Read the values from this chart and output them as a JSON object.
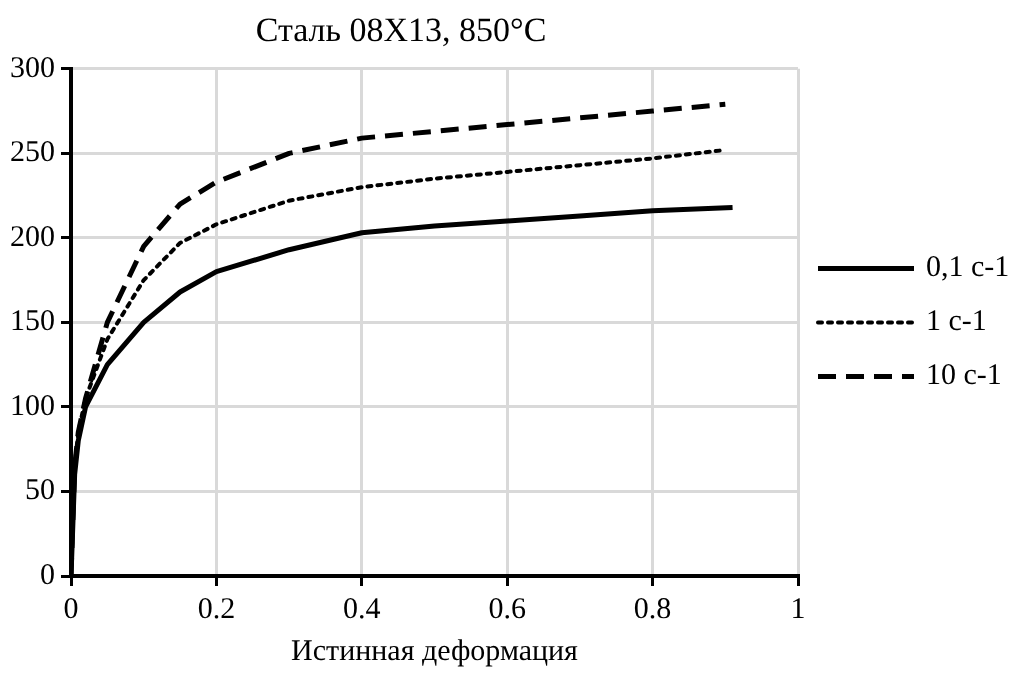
{
  "chart_data": {
    "type": "line",
    "title": "Сталь 08Х13, 850°С",
    "xlabel": "Истинная деформация",
    "xlim": [
      0,
      1
    ],
    "xticks": [
      0,
      0.2,
      0.4,
      0.6,
      0.8,
      1
    ],
    "ylim": [
      0,
      300
    ],
    "yticks": [
      0,
      50,
      100,
      150,
      200,
      250,
      300
    ],
    "grid": true,
    "legend": "right",
    "marker": "none",
    "series": [
      {
        "name": "0,1 с-1",
        "color": "#000000",
        "line_style": "solid",
        "x": [
          0,
          0.005,
          0.01,
          0.02,
          0.05,
          0.1,
          0.15,
          0.2,
          0.3,
          0.4,
          0.5,
          0.6,
          0.7,
          0.8,
          0.91
        ],
        "values": [
          0,
          60,
          80,
          100,
          125,
          150,
          168,
          180,
          193,
          203,
          207,
          210,
          213,
          216,
          218
        ]
      },
      {
        "name": "1 с-1",
        "color": "#000000",
        "line_style": "dotted",
        "x": [
          0,
          0.005,
          0.01,
          0.02,
          0.05,
          0.1,
          0.15,
          0.2,
          0.3,
          0.4,
          0.5,
          0.6,
          0.7,
          0.8,
          0.9
        ],
        "values": [
          0,
          65,
          85,
          105,
          140,
          175,
          197,
          208,
          222,
          230,
          235,
          239,
          243,
          247,
          252
        ]
      },
      {
        "name": "10 с-1",
        "color": "#000000",
        "line_style": "dashed",
        "x": [
          0,
          0.005,
          0.01,
          0.02,
          0.05,
          0.1,
          0.15,
          0.2,
          0.3,
          0.4,
          0.5,
          0.6,
          0.7,
          0.8,
          0.9
        ],
        "values": [
          0,
          65,
          85,
          105,
          150,
          195,
          220,
          233,
          250,
          259,
          263,
          267,
          271,
          275,
          279
        ]
      }
    ]
  }
}
